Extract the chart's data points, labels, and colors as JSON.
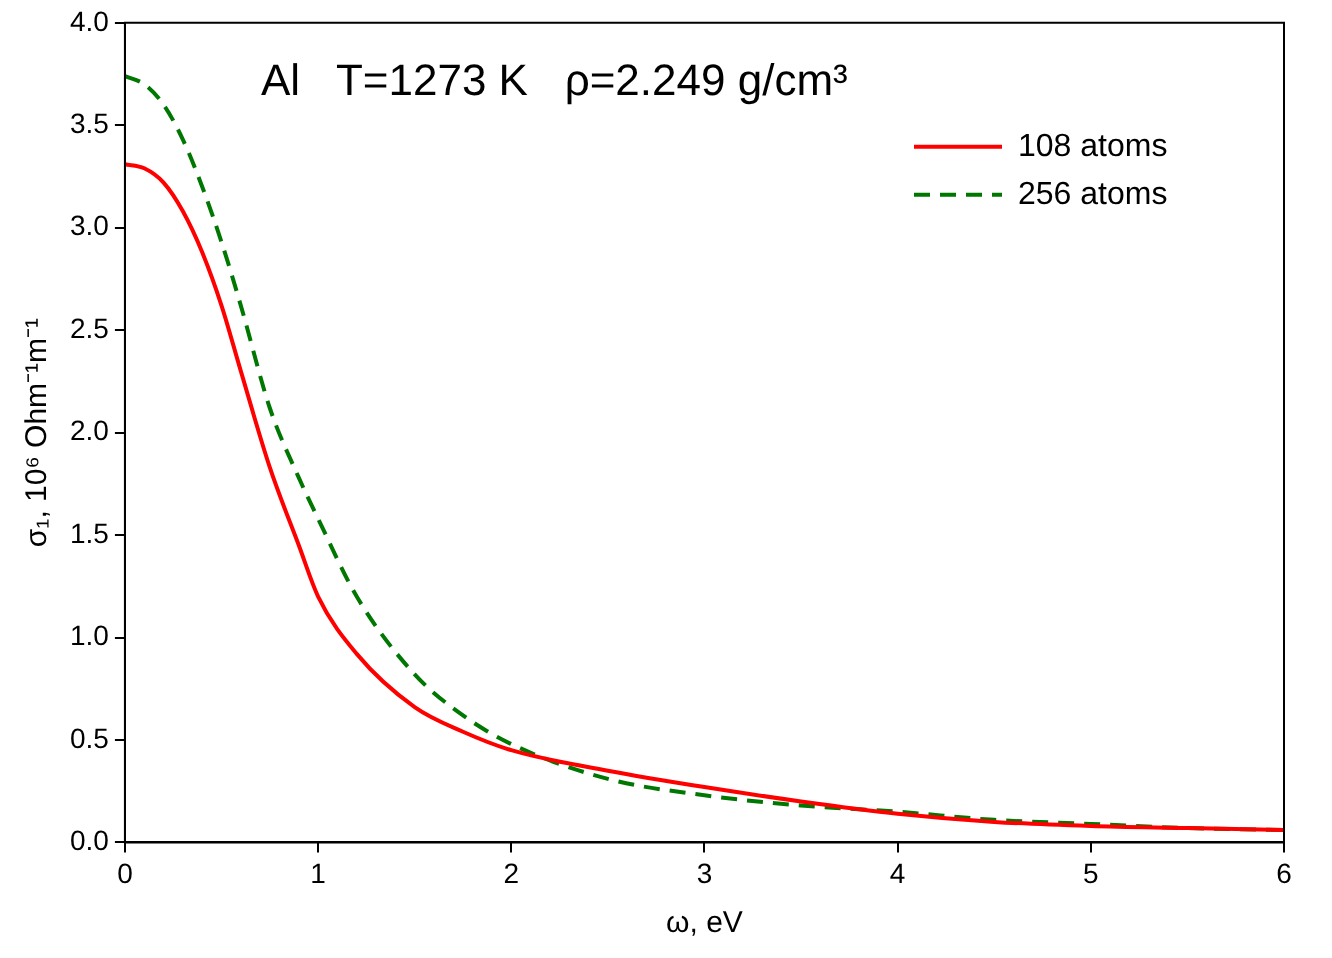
{
  "chart_data": {
    "type": "line",
    "xlabel": "ω, eV",
    "ylabel": "σ₁, 10⁶ Ohm⁻¹m⁻¹",
    "annotations": [
      "Al   T=1273 K   ρ=2.249 g/cm³"
    ],
    "x": [
      0,
      0.1,
      0.2,
      0.3,
      0.4,
      0.5,
      0.6,
      0.75,
      0.9,
      1.0,
      1.2,
      1.5,
      1.75,
      2.0,
      2.5,
      3.0,
      3.5,
      4.0,
      4.5,
      5.0,
      5.5,
      6.0
    ],
    "series": [
      {
        "name": "108 atoms",
        "color": "#ff0000",
        "line_style": "solid",
        "values": [
          3.31,
          3.29,
          3.22,
          3.08,
          2.88,
          2.62,
          2.3,
          1.83,
          1.45,
          1.2,
          0.92,
          0.66,
          0.54,
          0.45,
          0.35,
          0.27,
          0.2,
          0.14,
          0.1,
          0.08,
          0.07,
          0.06
        ]
      },
      {
        "name": "256 atoms",
        "color": "#007700",
        "line_style": "dashed",
        "values": [
          3.74,
          3.7,
          3.6,
          3.43,
          3.2,
          2.93,
          2.62,
          2.12,
          1.78,
          1.58,
          1.2,
          0.82,
          0.62,
          0.48,
          0.31,
          0.23,
          0.18,
          0.15,
          0.11,
          0.09,
          0.07,
          0.06
        ]
      }
    ],
    "xlim": [
      0,
      6
    ],
    "xticks": [
      0,
      1,
      2,
      3,
      4,
      5,
      6
    ],
    "ylim": [
      0,
      4
    ],
    "yticks": [
      {
        "value": 0,
        "label": "0.0"
      },
      0.5,
      {
        "value": 1,
        "label": "1.0"
      },
      1.5,
      {
        "value": 2,
        "label": "2.0"
      },
      2.5,
      {
        "value": 3,
        "label": "3.0"
      },
      3.5,
      {
        "value": 4,
        "label": "4.0"
      }
    ],
    "grid": false,
    "legend": "top right",
    "marker": "none"
  }
}
